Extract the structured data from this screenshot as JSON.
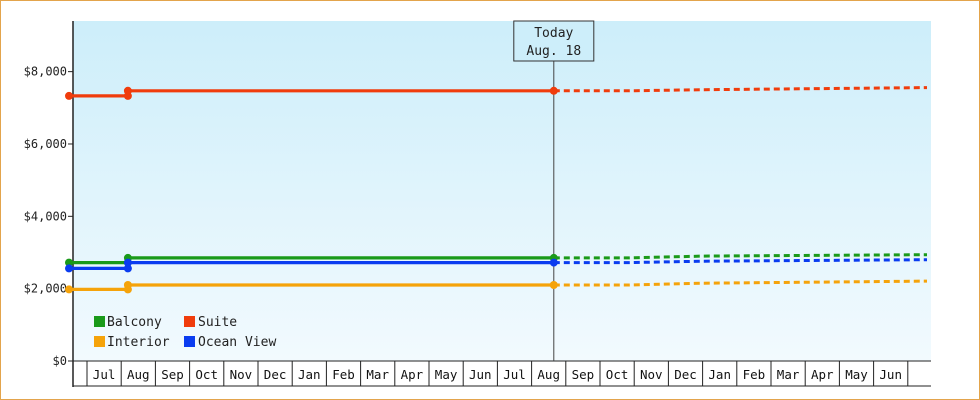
{
  "chart_data": {
    "type": "line",
    "title": "",
    "xlabel": "",
    "ylabel": "",
    "ylim": [
      0,
      9400
    ],
    "y_ticks": [
      {
        "value": 0,
        "label": "$0"
      },
      {
        "value": 2000,
        "label": "$2,000"
      },
      {
        "value": 4000,
        "label": "$4,000"
      },
      {
        "value": 6000,
        "label": "$6,000"
      },
      {
        "value": 8000,
        "label": "$8,000"
      }
    ],
    "months": [
      "Jul",
      "Aug",
      "Sep",
      "Oct",
      "Nov",
      "Dec",
      "Jan",
      "Feb",
      "Mar",
      "Apr",
      "May",
      "Jun",
      "Jul",
      "Aug",
      "Sep",
      "Oct",
      "Nov",
      "Dec",
      "Jan",
      "Feb",
      "Mar",
      "Apr",
      "May",
      "Jun"
    ],
    "today_index": 14,
    "annotation": {
      "line1": "Today",
      "line2": "Aug. 18"
    },
    "grid": false,
    "legend_position": "bottom-left",
    "background_gradient": [
      "#cdeefa",
      "#f2fafe"
    ],
    "series": [
      {
        "name": "Balcony",
        "color": "#1a9a1a",
        "history": [
          [
            0,
            2720
          ],
          [
            1.7,
            2720
          ],
          [
            1.7,
            2850
          ],
          [
            14,
            2850
          ]
        ],
        "markers": [
          0,
          1.7,
          1.7,
          14
        ],
        "forecast": [
          [
            14,
            2850
          ],
          [
            16,
            2850
          ],
          [
            18,
            2900
          ],
          [
            24,
            2940
          ]
        ]
      },
      {
        "name": "Suite",
        "color": "#f03c0c",
        "history": [
          [
            0,
            7330
          ],
          [
            1.7,
            7330
          ],
          [
            1.7,
            7470
          ],
          [
            14,
            7470
          ]
        ],
        "markers": [
          0,
          1.7,
          1.7,
          14
        ],
        "forecast": [
          [
            14,
            7470
          ],
          [
            16,
            7470
          ],
          [
            18,
            7500
          ],
          [
            24,
            7560
          ]
        ]
      },
      {
        "name": "Interior",
        "color": "#f5a30a",
        "history": [
          [
            0,
            1980
          ],
          [
            1.7,
            1980
          ],
          [
            1.7,
            2100
          ],
          [
            14,
            2100
          ]
        ],
        "markers": [
          0,
          1.7,
          1.7,
          14
        ],
        "forecast": [
          [
            14,
            2100
          ],
          [
            16,
            2100
          ],
          [
            18,
            2150
          ],
          [
            24,
            2210
          ]
        ]
      },
      {
        "name": "Ocean View",
        "color": "#0a3cf0",
        "history": [
          [
            0,
            2560
          ],
          [
            1.7,
            2560
          ],
          [
            1.7,
            2720
          ],
          [
            14,
            2720
          ]
        ],
        "markers": [
          0,
          1.7,
          1.7,
          14
        ],
        "forecast": [
          [
            14,
            2720
          ],
          [
            16,
            2720
          ],
          [
            18,
            2760
          ],
          [
            24,
            2800
          ]
        ]
      }
    ]
  }
}
